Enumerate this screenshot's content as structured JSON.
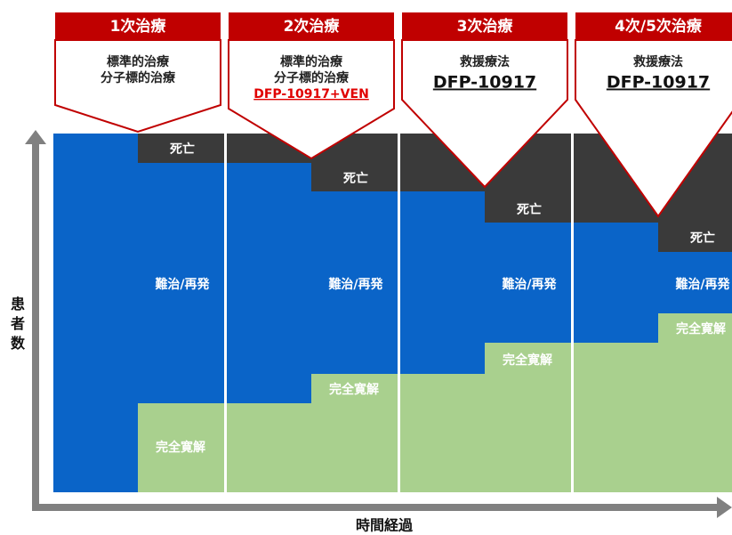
{
  "y_axis_label": "患者数",
  "x_axis_label": "時間経過",
  "columns": [
    {
      "header": "1次治療",
      "lines": [
        "標準的治療",
        "分子標的治療"
      ],
      "death": "死亡",
      "refractory": "難治/再発",
      "remission": "完全寛解"
    },
    {
      "header": "2次治療",
      "lines": [
        "標準的治療",
        "分子標的治療",
        "DFP-10917+VEN"
      ],
      "death": "死亡",
      "refractory": "難治/再発",
      "remission": "完全寛解"
    },
    {
      "header": "3次治療",
      "lines": [
        "救援療法",
        "DFP-10917"
      ],
      "death": "死亡",
      "refractory": "難治/再発",
      "remission": "完全寛解"
    },
    {
      "header": "4次/5次治療",
      "lines": [
        "救援療法",
        "DFP-10917"
      ],
      "death": "死亡",
      "refractory": "難治/再発",
      "remission": "完全寛解"
    }
  ]
}
